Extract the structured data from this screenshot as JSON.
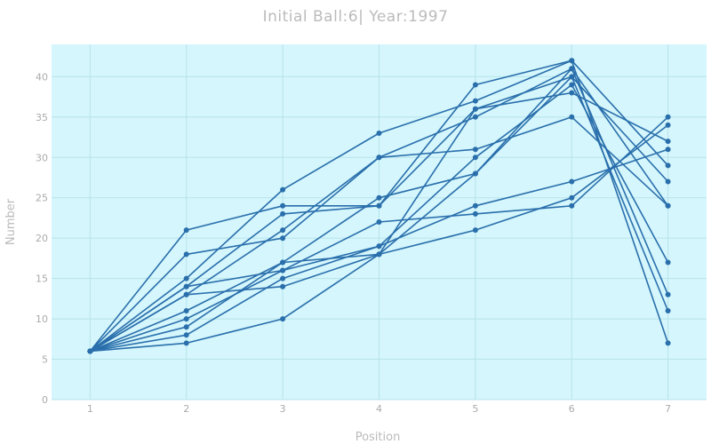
{
  "chart_data": {
    "type": "line",
    "title": "Initial Ball:6| Year:1997",
    "xlabel": "Position",
    "ylabel": "Number",
    "x": [
      1,
      2,
      3,
      4,
      5,
      6,
      7
    ],
    "xlim": [
      0.6,
      7.4
    ],
    "ylim": [
      0,
      44
    ],
    "x_ticks": [
      1,
      2,
      3,
      4,
      5,
      6,
      7
    ],
    "y_ticks": [
      0,
      5,
      10,
      15,
      20,
      25,
      30,
      35,
      40
    ],
    "grid": true,
    "legend": "none",
    "series": [
      {
        "values": [
          6,
          21,
          24,
          24,
          36,
          38,
          32
        ]
      },
      {
        "values": [
          6,
          18,
          20,
          30,
          31,
          35,
          24
        ]
      },
      {
        "values": [
          6,
          15,
          26,
          33,
          37,
          42,
          29
        ]
      },
      {
        "values": [
          6,
          14,
          23,
          24,
          39,
          42,
          7
        ]
      },
      {
        "values": [
          6,
          13,
          21,
          30,
          35,
          41,
          24
        ]
      },
      {
        "values": [
          6,
          11,
          17,
          25,
          28,
          40,
          27
        ]
      },
      {
        "values": [
          6,
          10,
          16,
          22,
          23,
          24,
          35
        ]
      },
      {
        "values": [
          6,
          9,
          17,
          18,
          21,
          25,
          34
        ]
      },
      {
        "values": [
          6,
          8,
          15,
          19,
          24,
          27,
          31
        ]
      },
      {
        "values": [
          6,
          14,
          16,
          19,
          30,
          39,
          17
        ]
      },
      {
        "values": [
          6,
          7,
          10,
          18,
          28,
          41,
          13
        ]
      },
      {
        "values": [
          6,
          13,
          14,
          18,
          36,
          40,
          11
        ]
      }
    ]
  },
  "colors": {
    "plot_background": "#d4f6fc",
    "page_background": "#ffffff",
    "series_line": "#2a6fac",
    "marker": "#2a6fac",
    "gridline": "#b8e3ea"
  }
}
